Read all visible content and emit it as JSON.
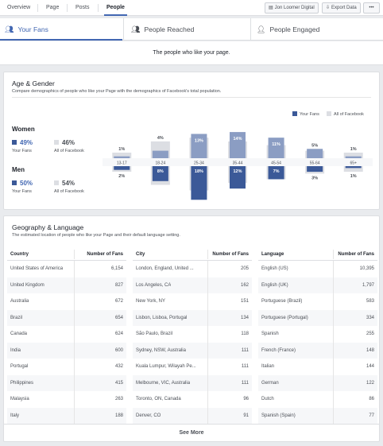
{
  "nav": {
    "tabs": [
      "Overview",
      "Page",
      "Posts",
      "People"
    ],
    "active_tab": "People",
    "page_button": "Jon Loomer Digital",
    "export_button": "Export Data",
    "more_button": "•••"
  },
  "fan_tabs": {
    "your_fans": "Your Fans",
    "people_reached": "People Reached",
    "people_engaged": "People Engaged"
  },
  "subtitle": "The people who like your page.",
  "age_gender": {
    "title": "Age & Gender",
    "description": "Compare demographics of people who like your Page with the demographics of Facebook's total population.",
    "women": {
      "label": "Women",
      "fans_pct": "49%",
      "fans_label": "Your Fans",
      "all_pct": "46%",
      "all_label": "All of Facebook"
    },
    "men": {
      "label": "Men",
      "fans_pct": "50%",
      "fans_label": "Your Fans",
      "all_pct": "54%",
      "all_label": "All of Facebook"
    },
    "legend": {
      "fans": "Your Fans",
      "all": "All of Facebook"
    },
    "colors": {
      "fans_women": "#8b9dc3",
      "fans_men": "#3b5998",
      "all": "#dcdee3",
      "fans_legend": "#3b5998"
    }
  },
  "chart_data": {
    "type": "bar",
    "categories": [
      "13-17",
      "18-24",
      "25-34",
      "35-44",
      "45-54",
      "55-64",
      "65+"
    ],
    "series": [
      {
        "name": "Women — Your Fans",
        "values": [
          1,
          4,
          13,
          14,
          11,
          5,
          1
        ]
      },
      {
        "name": "Men — Your Fans",
        "values": [
          2,
          8,
          18,
          12,
          7,
          3,
          1
        ]
      }
    ],
    "labels_top": [
      "1%",
      "4%",
      "13%",
      "14%",
      "11%",
      "5%",
      "1%"
    ],
    "labels_bottom": [
      "2%",
      "8%",
      "18%",
      "12%",
      "7%",
      "3%",
      "1%"
    ],
    "all_women": [
      3,
      9,
      11,
      9,
      7,
      4,
      3
    ],
    "all_men": [
      3,
      10,
      13,
      9,
      7,
      4,
      3
    ]
  },
  "geo": {
    "title": "Geography & Language",
    "description": "The estimated location of people who like your Page and their default language setting.",
    "country_header": "Country",
    "city_header": "City",
    "language_header": "Language",
    "count_header": "Number of Fans",
    "countries": [
      [
        "United States of America",
        "6,154"
      ],
      [
        "United Kingdom",
        "827"
      ],
      [
        "Australia",
        "672"
      ],
      [
        "Brazil",
        "654"
      ],
      [
        "Canada",
        "624"
      ],
      [
        "India",
        "600"
      ],
      [
        "Portugal",
        "432"
      ],
      [
        "Philippines",
        "415"
      ],
      [
        "Malaysia",
        "263"
      ],
      [
        "Italy",
        "188"
      ]
    ],
    "cities": [
      [
        "London, England, United ...",
        "205"
      ],
      [
        "Los Angeles, CA",
        "162"
      ],
      [
        "New York, NY",
        "151"
      ],
      [
        "Lisbon, Lisboa, Portugal",
        "134"
      ],
      [
        "São Paulo, Brazil",
        "118"
      ],
      [
        "Sydney, NSW, Australia",
        "111"
      ],
      [
        "Kuala Lumpur, Wilayah Pe...",
        "111"
      ],
      [
        "Melbourne, VIC, Australia",
        "111"
      ],
      [
        "Toronto, ON, Canada",
        "96"
      ],
      [
        "Denver, CO",
        "91"
      ]
    ],
    "languages": [
      [
        "English (US)",
        "10,395"
      ],
      [
        "English (UK)",
        "1,797"
      ],
      [
        "Portuguese (Brazil)",
        "583"
      ],
      [
        "Portuguese (Portugal)",
        "334"
      ],
      [
        "Spanish",
        "255"
      ],
      [
        "French (France)",
        "148"
      ],
      [
        "Italian",
        "144"
      ],
      [
        "German",
        "122"
      ],
      [
        "Dutch",
        "86"
      ],
      [
        "Spanish (Spain)",
        "77"
      ]
    ],
    "see_more": "See More"
  }
}
